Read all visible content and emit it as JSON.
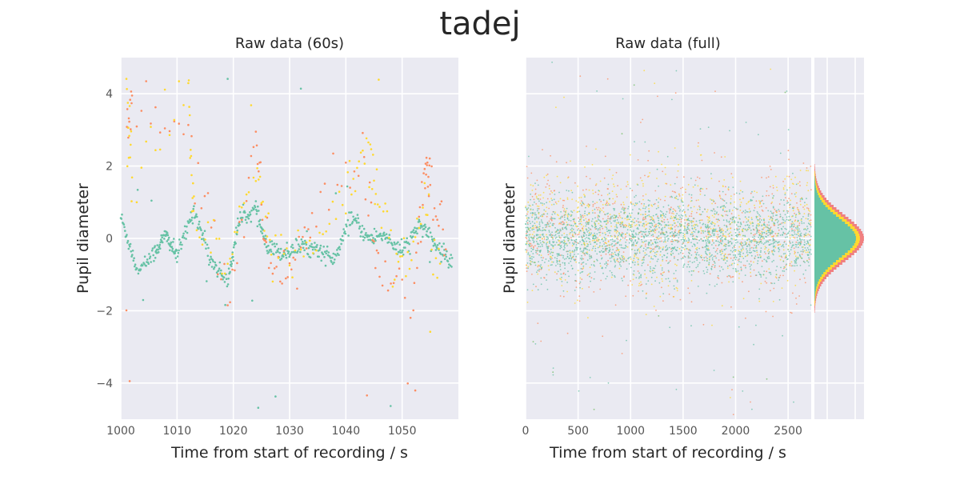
{
  "figure": {
    "title": "tadej",
    "colors": {
      "background": "#EAEAF2",
      "grid": "#FFFFFF",
      "green": "#66C2A5",
      "orange": "#FC8D62",
      "yellow": "#FFD92F",
      "pink": "#F08080"
    }
  },
  "chart_data": [
    {
      "type": "scatter",
      "title": "Raw data (60s)",
      "xlabel": "Time from start of recording / s",
      "ylabel": "Pupil diameter",
      "xlim": [
        1000,
        1060
      ],
      "ylim": [
        -5,
        5
      ],
      "xticks": [
        "1000",
        "1010",
        "1020",
        "1030",
        "1040",
        "1050"
      ],
      "yticks": [
        "4",
        "2",
        "0",
        "−2",
        "−4"
      ],
      "grid": true,
      "series": [
        {
          "color": "#66C2A5",
          "description_points": [
            [
              1000,
              0.6
            ],
            [
              1003,
              -0.9
            ],
            [
              1006,
              -0.4
            ],
            [
              1008,
              0.1
            ],
            [
              1010,
              -0.5
            ],
            [
              1013,
              0.8
            ],
            [
              1016,
              -0.6
            ],
            [
              1019,
              -1.2
            ],
            [
              1021,
              0.5
            ],
            [
              1024,
              0.8
            ],
            [
              1026,
              -0.3
            ],
            [
              1029,
              -0.4
            ],
            [
              1032,
              -0.2
            ],
            [
              1035,
              -0.3
            ],
            [
              1038,
              -0.6
            ],
            [
              1041,
              0.6
            ],
            [
              1044,
              0.0
            ],
            [
              1047,
              0.1
            ],
            [
              1050,
              -0.4
            ],
            [
              1053,
              0.4
            ],
            [
              1056,
              -0.2
            ],
            [
              1059,
              -0.7
            ]
          ]
        },
        {
          "color": "#FC8D62",
          "description_points": [
            [
              1001,
              3.2
            ],
            [
              1002,
              3.7
            ],
            [
              1012,
              3.0
            ],
            [
              1019,
              -1.5
            ],
            [
              1024,
              2.5
            ],
            [
              1026,
              -0.5
            ],
            [
              1030,
              -0.9
            ],
            [
              1034,
              0.4
            ],
            [
              1043,
              2.2
            ],
            [
              1046,
              -1.0
            ],
            [
              1052,
              -1.6
            ],
            [
              1054,
              1.8
            ],
            [
              1055,
              1.4
            ],
            [
              1058,
              -0.5
            ]
          ]
        },
        {
          "color": "#FFD92F",
          "description_points": [
            [
              1001,
              4.3
            ],
            [
              1002,
              1.6
            ],
            [
              1012,
              4.2
            ],
            [
              1013,
              0.3
            ],
            [
              1019,
              -0.8
            ],
            [
              1024,
              2.0
            ],
            [
              1027,
              -0.7
            ],
            [
              1033,
              -0.3
            ],
            [
              1040,
              1.4
            ],
            [
              1044,
              2.5
            ],
            [
              1046,
              1.0
            ],
            [
              1050,
              -0.8
            ],
            [
              1054,
              0.9
            ],
            [
              1057,
              -1.2
            ]
          ]
        }
      ]
    },
    {
      "type": "scatter",
      "title": "Raw data (full)",
      "xlabel": "Time from start of recording / s",
      "ylabel": "Pupil diameter",
      "xlim": [
        0,
        2720
      ],
      "ylim": [
        -5,
        5
      ],
      "xticks": [
        "0",
        "500",
        "1000",
        "1500",
        "2000",
        "2500"
      ],
      "grid": true,
      "series": [
        {
          "color": "#66C2A5",
          "center": 0.0,
          "spread": 0.55
        },
        {
          "color": "#FC8D62",
          "center": 0.2,
          "spread": 0.9
        },
        {
          "color": "#FFD92F",
          "center": 0.3,
          "spread": 0.8
        }
      ]
    },
    {
      "type": "histogram",
      "orientation": "horizontal",
      "ylim": [
        -5,
        5
      ],
      "series": [
        {
          "color": "#F08080",
          "center": 0.0,
          "sd": 0.65
        },
        {
          "color": "#FFD92F",
          "center": 0.0,
          "sd": 0.6
        },
        {
          "color": "#66C2A5",
          "center": 0.0,
          "sd": 0.55
        }
      ]
    }
  ]
}
